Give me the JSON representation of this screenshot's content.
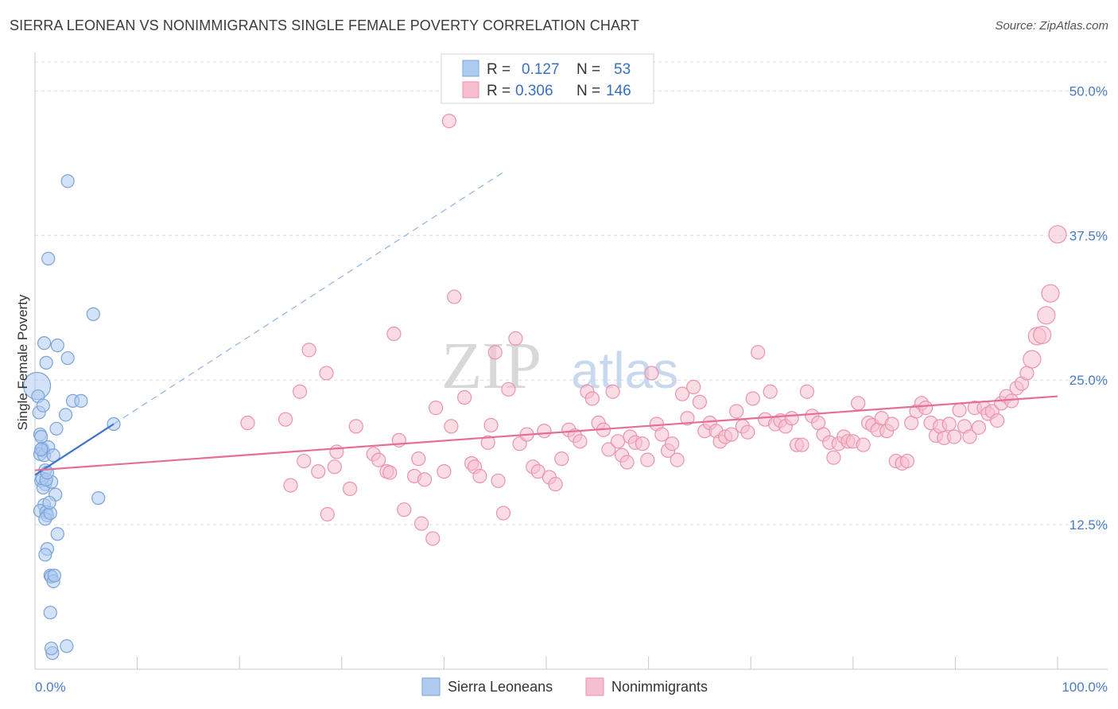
{
  "header": {
    "title": "SIERRA LEONEAN VS NONIMMIGRANTS SINGLE FEMALE POVERTY CORRELATION CHART",
    "source": "Source: ZipAtlas.com"
  },
  "legend": {
    "r_label": "R =",
    "n_label": "N =",
    "series": [
      {
        "r": "0.127",
        "n": "53"
      },
      {
        "r": "0.306",
        "n": "146"
      }
    ]
  },
  "watermark": {
    "zip": "ZIP",
    "atlas": "atlas"
  },
  "colors": {
    "blue_fill": "#aecbf0",
    "blue_stroke": "#7aa3d8",
    "blue_line": "#3b74c9",
    "pink_fill": "#f6bfd0",
    "pink_stroke": "#ea93b0",
    "pink_line": "#e56e97"
  },
  "chart_data": {
    "type": "scatter",
    "title": "SIERRA LEONEAN VS NONIMMIGRANTS SINGLE FEMALE POVERTY CORRELATION CHART",
    "xlabel": "",
    "ylabel": "Single Female Poverty",
    "xlim": [
      0,
      100
    ],
    "ylim": [
      0,
      52.5
    ],
    "x_tick_labels": {
      "min": "0.0%",
      "max": "100.0%"
    },
    "y_ticks": [
      12.5,
      25.0,
      37.5,
      50.0
    ],
    "y_tick_labels": [
      "12.5%",
      "25.0%",
      "37.5%",
      "50.0%"
    ],
    "grid": true,
    "series": [
      {
        "name": "Sierra Leoneans",
        "r": 0.127,
        "n": 53,
        "trend": {
          "x0": 0,
          "y0": 16.8,
          "x1": 7.7,
          "y1": 21.2,
          "dash_to_x": 46
        },
        "points": [
          [
            0.2,
            24.5
          ],
          [
            0.3,
            23.6
          ],
          [
            0.4,
            22.2
          ],
          [
            0.5,
            20.3
          ],
          [
            0.6,
            20.1
          ],
          [
            0.7,
            19.1
          ],
          [
            0.8,
            18.9
          ],
          [
            0.5,
            18.6
          ],
          [
            0.9,
            18.5
          ],
          [
            0.6,
            16.3
          ],
          [
            1.0,
            16.0
          ],
          [
            0.8,
            15.7
          ],
          [
            0.9,
            14.2
          ],
          [
            0.5,
            13.7
          ],
          [
            1.1,
            13.6
          ],
          [
            1.2,
            13.3
          ],
          [
            1.0,
            13.0
          ],
          [
            0.9,
            28.2
          ],
          [
            1.1,
            26.5
          ],
          [
            0.8,
            22.8
          ],
          [
            1.3,
            19.2
          ],
          [
            1.0,
            17.2
          ],
          [
            1.2,
            10.4
          ],
          [
            1.0,
            9.9
          ],
          [
            1.5,
            8.1
          ],
          [
            1.6,
            8.0
          ],
          [
            1.8,
            7.6
          ],
          [
            1.5,
            4.9
          ],
          [
            1.7,
            1.4
          ],
          [
            1.6,
            1.8
          ],
          [
            3.2,
            42.2
          ],
          [
            1.3,
            35.5
          ],
          [
            2.2,
            28.0
          ],
          [
            3.2,
            26.9
          ],
          [
            3.0,
            22.0
          ],
          [
            2.1,
            20.8
          ],
          [
            1.8,
            18.5
          ],
          [
            1.6,
            16.2
          ],
          [
            2.0,
            15.1
          ],
          [
            2.2,
            11.7
          ],
          [
            3.7,
            23.2
          ],
          [
            4.5,
            23.2
          ],
          [
            5.7,
            30.7
          ],
          [
            6.2,
            14.8
          ],
          [
            7.7,
            21.2
          ],
          [
            3.1,
            2.0
          ],
          [
            1.5,
            13.5
          ],
          [
            1.4,
            14.4
          ],
          [
            0.7,
            16.5
          ],
          [
            1.1,
            16.4
          ],
          [
            1.9,
            8.1
          ],
          [
            0.6,
            19.0
          ],
          [
            1.2,
            17.0
          ]
        ]
      },
      {
        "name": "Nonimmigrants",
        "r": 0.306,
        "n": 146,
        "trend": {
          "x0": 0,
          "y0": 17.2,
          "x1": 100,
          "y1": 23.6
        },
        "points": [
          [
            40.5,
            47.4
          ],
          [
            20.8,
            21.3
          ],
          [
            24.5,
            21.6
          ],
          [
            25.0,
            15.9
          ],
          [
            25.9,
            24.0
          ],
          [
            26.3,
            18.0
          ],
          [
            26.8,
            27.6
          ],
          [
            27.7,
            17.1
          ],
          [
            28.6,
            13.4
          ],
          [
            28.5,
            25.6
          ],
          [
            29.3,
            17.5
          ],
          [
            29.5,
            18.8
          ],
          [
            30.8,
            15.6
          ],
          [
            31.4,
            21.0
          ],
          [
            33.1,
            18.6
          ],
          [
            33.6,
            18.1
          ],
          [
            34.4,
            17.1
          ],
          [
            34.7,
            17.0
          ],
          [
            35.1,
            29.0
          ],
          [
            35.6,
            19.8
          ],
          [
            36.1,
            13.8
          ],
          [
            37.1,
            16.7
          ],
          [
            37.5,
            18.2
          ],
          [
            37.8,
            12.6
          ],
          [
            38.1,
            16.4
          ],
          [
            38.9,
            11.3
          ],
          [
            39.2,
            22.6
          ],
          [
            40.0,
            17.1
          ],
          [
            40.7,
            21.0
          ],
          [
            41.0,
            32.2
          ],
          [
            42.0,
            23.5
          ],
          [
            42.7,
            17.8
          ],
          [
            43.0,
            17.5
          ],
          [
            43.5,
            16.7
          ],
          [
            44.3,
            19.6
          ],
          [
            44.6,
            21.1
          ],
          [
            45.0,
            27.4
          ],
          [
            45.3,
            16.3
          ],
          [
            45.8,
            13.5
          ],
          [
            46.3,
            24.2
          ],
          [
            47.0,
            28.6
          ],
          [
            47.4,
            19.5
          ],
          [
            48.1,
            20.3
          ],
          [
            48.7,
            17.5
          ],
          [
            49.2,
            17.1
          ],
          [
            49.8,
            20.6
          ],
          [
            50.3,
            16.6
          ],
          [
            50.9,
            16.0
          ],
          [
            51.5,
            18.2
          ],
          [
            52.2,
            20.7
          ],
          [
            52.8,
            20.2
          ],
          [
            53.3,
            19.7
          ],
          [
            54.0,
            24.0
          ],
          [
            54.5,
            23.4
          ],
          [
            55.1,
            21.3
          ],
          [
            55.6,
            20.7
          ],
          [
            56.1,
            19.0
          ],
          [
            56.5,
            24.0
          ],
          [
            57.0,
            19.7
          ],
          [
            57.4,
            18.5
          ],
          [
            57.9,
            17.9
          ],
          [
            58.2,
            20.1
          ],
          [
            58.7,
            19.6
          ],
          [
            59.4,
            19.5
          ],
          [
            59.9,
            18.1
          ],
          [
            60.3,
            25.6
          ],
          [
            60.8,
            21.2
          ],
          [
            61.3,
            20.3
          ],
          [
            61.9,
            18.9
          ],
          [
            62.3,
            19.5
          ],
          [
            62.8,
            18.1
          ],
          [
            63.3,
            23.8
          ],
          [
            63.8,
            21.7
          ],
          [
            64.4,
            24.4
          ],
          [
            65.0,
            23.1
          ],
          [
            65.5,
            20.6
          ],
          [
            66.0,
            21.3
          ],
          [
            66.6,
            20.6
          ],
          [
            67.0,
            19.7
          ],
          [
            67.5,
            20.1
          ],
          [
            68.1,
            20.3
          ],
          [
            68.6,
            22.3
          ],
          [
            69.2,
            21.0
          ],
          [
            69.7,
            20.5
          ],
          [
            70.2,
            23.4
          ],
          [
            70.7,
            27.4
          ],
          [
            71.4,
            21.6
          ],
          [
            71.9,
            24.0
          ],
          [
            72.4,
            21.2
          ],
          [
            72.9,
            21.5
          ],
          [
            73.4,
            21.0
          ],
          [
            74.0,
            21.7
          ],
          [
            74.5,
            19.4
          ],
          [
            75.0,
            19.4
          ],
          [
            75.5,
            24.0
          ],
          [
            76.0,
            21.9
          ],
          [
            76.6,
            21.3
          ],
          [
            77.1,
            20.3
          ],
          [
            77.7,
            19.6
          ],
          [
            78.1,
            18.3
          ],
          [
            78.6,
            19.5
          ],
          [
            79.1,
            20.1
          ],
          [
            79.5,
            19.7
          ],
          [
            80.0,
            19.7
          ],
          [
            80.5,
            23.0
          ],
          [
            81.0,
            19.4
          ],
          [
            81.5,
            21.3
          ],
          [
            81.9,
            21.1
          ],
          [
            82.4,
            20.7
          ],
          [
            82.8,
            21.7
          ],
          [
            83.3,
            20.6
          ],
          [
            83.8,
            21.2
          ],
          [
            84.2,
            18.0
          ],
          [
            84.8,
            17.8
          ],
          [
            85.3,
            18.0
          ],
          [
            85.7,
            21.3
          ],
          [
            86.2,
            22.3
          ],
          [
            86.7,
            23.0
          ],
          [
            87.1,
            22.6
          ],
          [
            87.6,
            21.3
          ],
          [
            88.1,
            20.2
          ],
          [
            88.5,
            21.0
          ],
          [
            88.9,
            20.0
          ],
          [
            89.4,
            21.2
          ],
          [
            89.9,
            20.1
          ],
          [
            90.4,
            22.4
          ],
          [
            90.9,
            21.0
          ],
          [
            91.4,
            20.1
          ],
          [
            91.9,
            22.6
          ],
          [
            92.3,
            20.9
          ],
          [
            92.8,
            22.6
          ],
          [
            93.2,
            22.1
          ],
          [
            93.6,
            22.3
          ],
          [
            94.1,
            21.5
          ],
          [
            94.5,
            23.0
          ],
          [
            95.0,
            23.6
          ],
          [
            95.5,
            23.2
          ],
          [
            96.0,
            24.3
          ],
          [
            96.5,
            24.7
          ],
          [
            97.0,
            25.6
          ],
          [
            97.5,
            26.8
          ],
          [
            98.0,
            28.8
          ],
          [
            98.5,
            28.9
          ],
          [
            98.9,
            30.6
          ],
          [
            99.3,
            32.5
          ],
          [
            100.0,
            37.6
          ]
        ]
      }
    ]
  },
  "bottom_legend": [
    "Sierra Leoneans",
    "Nonimmigrants"
  ]
}
